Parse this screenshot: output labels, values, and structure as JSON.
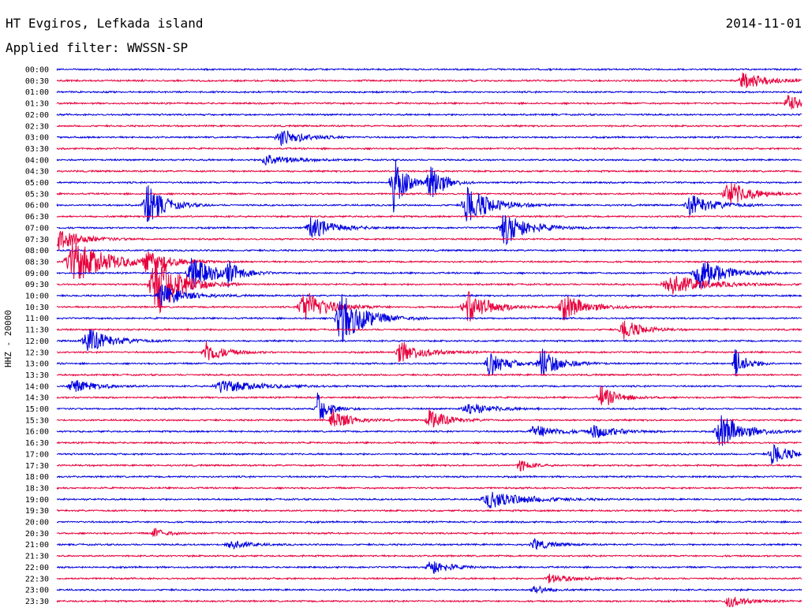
{
  "header": {
    "station": "HT Evgiros, Lefkada island",
    "date": "2014-11-01",
    "filter": "Applied filter: WWSSN-SP"
  },
  "chart_data": {
    "type": "line",
    "title": "HT Evgiros, Lefkada island",
    "ylabel": "HHZ - 20000",
    "xlabel": "",
    "row_labels": [
      "00:00",
      "00:30",
      "01:00",
      "01:30",
      "02:00",
      "02:30",
      "03:00",
      "03:30",
      "04:00",
      "04:30",
      "05:00",
      "05:30",
      "06:00",
      "06:30",
      "07:00",
      "07:30",
      "08:00",
      "08:30",
      "09:00",
      "09:30",
      "10:00",
      "10:30",
      "11:00",
      "11:30",
      "12:00",
      "12:30",
      "13:00",
      "13:30",
      "14:00",
      "14:30",
      "15:00",
      "15:30",
      "16:00",
      "16:30",
      "17:00",
      "17:30",
      "18:00",
      "18:30",
      "19:00",
      "19:30",
      "20:00",
      "20:30",
      "21:00",
      "21:30",
      "22:00",
      "22:30",
      "23:00",
      "23:30"
    ],
    "colors": {
      "even_rows": "#0000e0",
      "odd_rows": "#e8003c"
    },
    "events": [
      [
        1,
        0.92,
        0.8,
        0.02
      ],
      [
        3,
        0.98,
        1.0,
        0.01
      ],
      [
        6,
        0.3,
        0.8,
        0.02
      ],
      [
        8,
        0.28,
        0.6,
        0.02
      ],
      [
        10,
        0.5,
        2.5,
        0.01
      ],
      [
        10,
        0.45,
        3.0,
        0.01
      ],
      [
        11,
        0.9,
        1.2,
        0.02
      ],
      [
        12,
        0.12,
        2.0,
        0.015
      ],
      [
        12,
        0.55,
        1.8,
        0.02
      ],
      [
        12,
        0.85,
        1.0,
        0.02
      ],
      [
        14,
        0.34,
        1.0,
        0.02
      ],
      [
        14,
        0.6,
        1.6,
        0.02
      ],
      [
        15,
        0.0,
        1.0,
        0.02
      ],
      [
        17,
        0.02,
        2.0,
        0.03
      ],
      [
        17,
        0.12,
        0.8,
        0.02
      ],
      [
        18,
        0.18,
        1.5,
        0.02
      ],
      [
        18,
        0.23,
        1.0,
        0.01
      ],
      [
        18,
        0.86,
        1.8,
        0.02
      ],
      [
        19,
        0.13,
        3.5,
        0.02
      ],
      [
        19,
        0.82,
        1.0,
        0.03
      ],
      [
        20,
        0.14,
        1.0,
        0.02
      ],
      [
        21,
        0.33,
        1.6,
        0.02
      ],
      [
        21,
        0.55,
        1.5,
        0.02
      ],
      [
        21,
        0.68,
        1.2,
        0.02
      ],
      [
        22,
        0.38,
        2.5,
        0.02
      ],
      [
        23,
        0.76,
        1.0,
        0.015
      ],
      [
        24,
        0.04,
        1.2,
        0.02
      ],
      [
        25,
        0.2,
        1.0,
        0.015
      ],
      [
        25,
        0.46,
        1.0,
        0.02
      ],
      [
        26,
        0.58,
        1.2,
        0.015
      ],
      [
        26,
        0.65,
        1.5,
        0.015
      ],
      [
        26,
        0.91,
        1.4,
        0.01
      ],
      [
        28,
        0.02,
        0.6,
        0.02
      ],
      [
        28,
        0.22,
        0.6,
        0.03
      ],
      [
        29,
        0.73,
        1.0,
        0.015
      ],
      [
        30,
        0.35,
        1.5,
        0.01
      ],
      [
        30,
        0.55,
        0.6,
        0.02
      ],
      [
        31,
        0.37,
        1.0,
        0.015
      ],
      [
        31,
        0.5,
        1.0,
        0.015
      ],
      [
        32,
        0.64,
        0.6,
        0.02
      ],
      [
        32,
        0.72,
        0.6,
        0.02
      ],
      [
        32,
        0.89,
        1.6,
        0.02
      ],
      [
        34,
        0.96,
        1.0,
        0.015
      ],
      [
        35,
        0.62,
        0.6,
        0.01
      ],
      [
        38,
        0.58,
        0.8,
        0.03
      ],
      [
        41,
        0.13,
        0.5,
        0.01
      ],
      [
        42,
        0.23,
        0.5,
        0.015
      ],
      [
        42,
        0.64,
        0.5,
        0.015
      ],
      [
        44,
        0.5,
        0.8,
        0.015
      ],
      [
        45,
        0.66,
        0.4,
        0.02
      ],
      [
        46,
        0.64,
        0.5,
        0.01
      ],
      [
        47,
        0.9,
        0.6,
        0.015
      ]
    ]
  }
}
